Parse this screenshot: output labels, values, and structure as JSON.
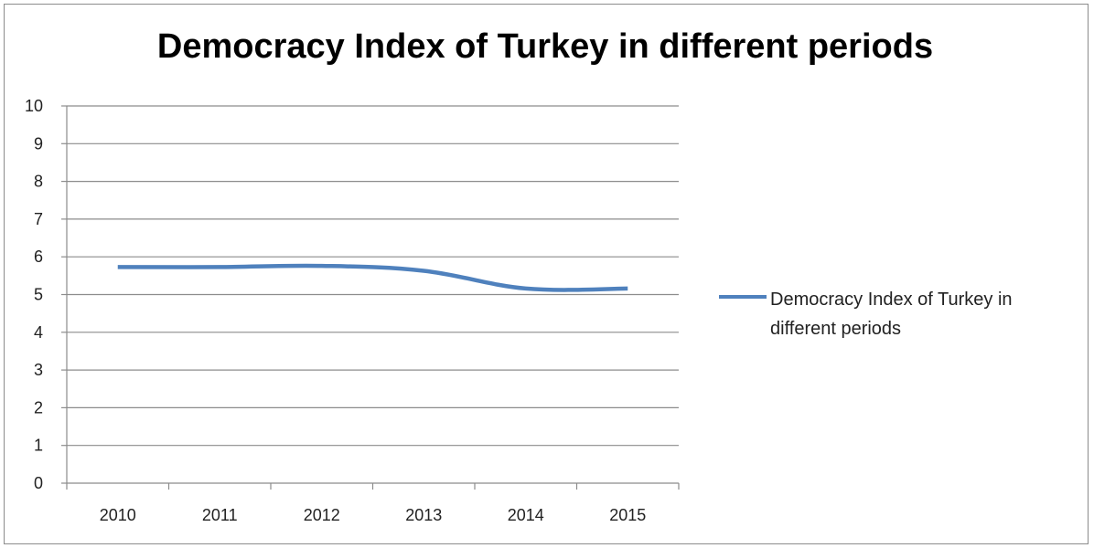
{
  "chart_data": {
    "type": "line",
    "title": "Democracy Index of Turkey in different periods",
    "xlabel": "",
    "ylabel": "",
    "categories": [
      "2010",
      "2011",
      "2012",
      "2013",
      "2014",
      "2015"
    ],
    "series": [
      {
        "name": "Democracy Index of Turkey in different periods",
        "values": [
          5.73,
          5.73,
          5.76,
          5.63,
          5.16,
          5.16
        ],
        "color": "#4f81bd"
      }
    ],
    "ylim": [
      0,
      10
    ],
    "yticks": [
      "0",
      "1",
      "2",
      "3",
      "4",
      "5",
      "6",
      "7",
      "8",
      "9",
      "10"
    ],
    "grid": true,
    "legend_position": "right"
  }
}
